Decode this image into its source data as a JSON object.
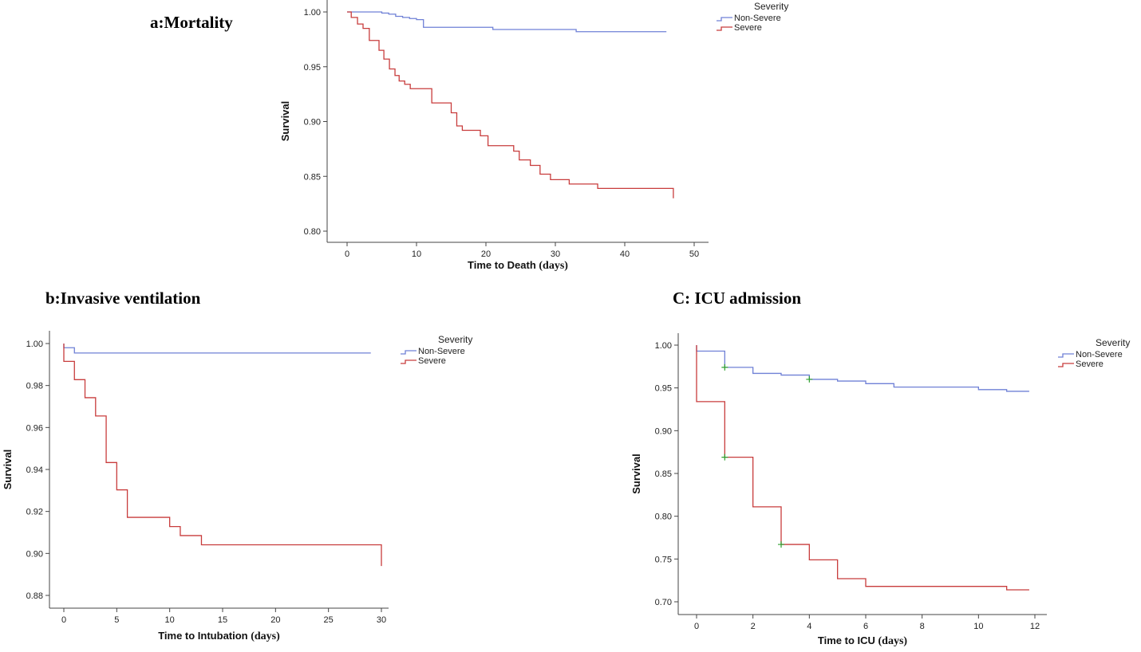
{
  "panels": {
    "a": {
      "title": "a:Mortality"
    },
    "b": {
      "title": "b:Invasive ventilation"
    },
    "c": {
      "title": "C: ICU admission"
    }
  },
  "chart_data": [
    {
      "type": "line",
      "title": "a:Mortality",
      "xlabel": "Time to Death",
      "xunit": "(days)",
      "ylabel": "Survival",
      "xlim": [
        0,
        50
      ],
      "ylim": [
        0.8,
        1.0
      ],
      "xticks": [
        "0",
        "10",
        "20",
        "30",
        "40",
        "50"
      ],
      "yticks": [
        "0.80",
        "0.85",
        "0.90",
        "0.95",
        "1.00"
      ],
      "legend": {
        "title": "Severity",
        "position": "top-right"
      },
      "series": [
        {
          "name": "Non-Severe",
          "color": "#6f80d6",
          "x": [
            0,
            5,
            6,
            7,
            8,
            9,
            10,
            11,
            21,
            33,
            46
          ],
          "y": [
            1.0,
            0.999,
            0.998,
            0.996,
            0.995,
            0.994,
            0.993,
            0.986,
            0.984,
            0.982,
            0.982
          ]
        },
        {
          "name": "Severe",
          "color": "#c83c3c",
          "x": [
            0,
            0.6,
            1.5,
            2.3,
            3.2,
            4.6,
            5.3,
            6.1,
            6.9,
            7.5,
            8.3,
            9.1,
            9.9,
            12.2,
            15.0,
            15.8,
            16.6,
            17.5,
            19.2,
            20.3,
            24.0,
            24.8,
            26.4,
            27.8,
            29.3,
            30.3,
            32.0,
            36.1,
            47.0
          ],
          "y": [
            1.0,
            0.995,
            0.989,
            0.985,
            0.974,
            0.965,
            0.957,
            0.948,
            0.942,
            0.937,
            0.934,
            0.93,
            0.93,
            0.917,
            0.908,
            0.896,
            0.892,
            0.892,
            0.887,
            0.878,
            0.873,
            0.865,
            0.86,
            0.852,
            0.847,
            0.847,
            0.843,
            0.839,
            0.83
          ]
        }
      ]
    },
    {
      "type": "line",
      "title": "b:Invasive ventilation",
      "xlabel": "Time to Intubation",
      "xunit": "(days)",
      "ylabel": "Survival",
      "xlim": [
        0,
        30
      ],
      "ylim": [
        0.88,
        1.0
      ],
      "xticks": [
        "0",
        "5",
        "10",
        "15",
        "20",
        "25",
        "30"
      ],
      "yticks": [
        "0.88",
        "0.90",
        "0.92",
        "0.94",
        "0.96",
        "0.98",
        "1.00"
      ],
      "legend": {
        "title": "Severity",
        "position": "top-right"
      },
      "series": [
        {
          "name": "Non-Severe",
          "color": "#6f80d6",
          "x": [
            0,
            1,
            29
          ],
          "y": [
            0.998,
            0.9955,
            0.9955
          ]
        },
        {
          "name": "Severe",
          "color": "#c83c3c",
          "x": [
            0,
            1,
            2,
            3,
            4,
            5,
            6,
            10,
            11,
            13,
            30
          ],
          "y": [
            0.9915,
            0.9828,
            0.9742,
            0.9655,
            0.9433,
            0.9303,
            0.9172,
            0.9128,
            0.9085,
            0.9041,
            0.894
          ]
        }
      ]
    },
    {
      "type": "line",
      "title": "C: ICU admission",
      "xlabel": "Time to ICU",
      "xunit": "(days)",
      "ylabel": "Survival",
      "xlim": [
        0,
        12
      ],
      "ylim": [
        0.7,
        1.0
      ],
      "xticks": [
        "0",
        "2",
        "4",
        "6",
        "8",
        "10",
        "12"
      ],
      "yticks": [
        "0.70",
        "0.75",
        "0.80",
        "0.85",
        "0.90",
        "0.95",
        "1.00"
      ],
      "legend": {
        "title": "Severity",
        "position": "top-right"
      },
      "series": [
        {
          "name": "Non-Severe",
          "color": "#6f80d6",
          "x": [
            0,
            1,
            2,
            3,
            4,
            5,
            6,
            7,
            10,
            11,
            11.8
          ],
          "y": [
            0.993,
            0.974,
            0.967,
            0.965,
            0.96,
            0.958,
            0.955,
            0.951,
            0.948,
            0.946,
            0.946
          ],
          "censored_x": [
            1,
            4
          ],
          "censored_y": [
            0.974,
            0.96
          ]
        },
        {
          "name": "Severe",
          "color": "#c83c3c",
          "x": [
            0,
            1,
            2,
            3,
            4,
            5,
            6,
            11,
            11.8
          ],
          "y": [
            0.934,
            0.869,
            0.811,
            0.767,
            0.749,
            0.727,
            0.718,
            0.714,
            0.714
          ],
          "censored_x": [
            1,
            3
          ],
          "censored_y": [
            0.869,
            0.767
          ]
        }
      ]
    }
  ]
}
